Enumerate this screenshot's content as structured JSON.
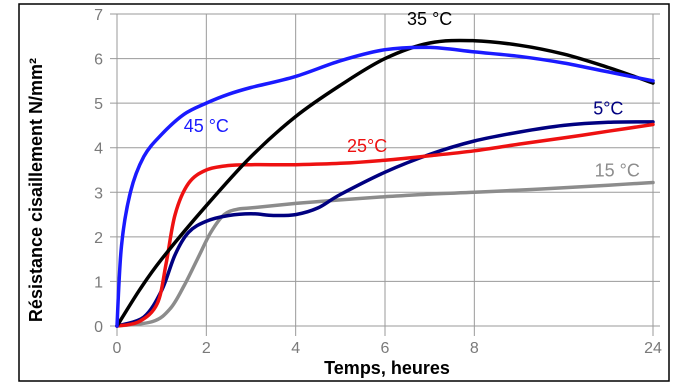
{
  "chart_data": {
    "type": "line",
    "xlabel": "Temps, heures",
    "ylabel": "Résistance cisaillement  N/mm²",
    "x_ticks": [
      "0",
      "2",
      "4",
      "6",
      "8",
      "24"
    ],
    "x_tick_positions": [
      0,
      2,
      4,
      6,
      8,
      12
    ],
    "y_ticks": [
      "0",
      "1",
      "2",
      "3",
      "4",
      "5",
      "6",
      "7"
    ],
    "ylim": [
      0,
      7
    ],
    "grid": true,
    "series": [
      {
        "name": "45 °C",
        "color": "#1a1aff",
        "x": [
          0,
          0.1,
          0.3,
          0.6,
          1.0,
          1.5,
          2.0,
          2.5,
          3.0,
          4.0,
          5.0,
          6.0,
          7.0,
          8.0,
          9.0,
          10.0,
          11.0,
          12.0
        ],
        "y": [
          0,
          1.8,
          3.0,
          3.8,
          4.3,
          4.75,
          5.0,
          5.2,
          5.35,
          5.6,
          5.95,
          6.2,
          6.25,
          6.15,
          6.05,
          5.9,
          5.7,
          5.5
        ]
      },
      {
        "name": "35 °C",
        "color": "#000000",
        "x": [
          0,
          0.5,
          1.0,
          2.0,
          3.0,
          4.0,
          5.0,
          6.0,
          7.0,
          8.0,
          9.0,
          10.0,
          11.0,
          12.0
        ],
        "y": [
          0,
          0.8,
          1.5,
          2.7,
          3.8,
          4.7,
          5.4,
          6.0,
          6.35,
          6.4,
          6.3,
          6.1,
          5.8,
          5.45
        ]
      },
      {
        "name": "25°C",
        "color": "#ee1111",
        "x": [
          0,
          0.5,
          0.9,
          1.1,
          1.3,
          1.6,
          2.0,
          2.5,
          3.0,
          4.0,
          5.0,
          6.0,
          7.0,
          8.0,
          9.0,
          10.0,
          11.0,
          12.0
        ],
        "y": [
          0,
          0.1,
          0.5,
          1.4,
          2.5,
          3.2,
          3.5,
          3.6,
          3.62,
          3.62,
          3.65,
          3.72,
          3.82,
          3.93,
          4.08,
          4.22,
          4.37,
          4.52
        ]
      },
      {
        "name": "5°C",
        "color": "#000080",
        "x": [
          0,
          0.6,
          1.0,
          1.3,
          1.6,
          2.0,
          2.5,
          3.0,
          3.5,
          4.0,
          4.5,
          5.0,
          6.0,
          7.0,
          8.0,
          9.0,
          10.0,
          11.0,
          12.0
        ],
        "y": [
          0,
          0.2,
          0.8,
          1.6,
          2.1,
          2.35,
          2.48,
          2.52,
          2.48,
          2.5,
          2.65,
          2.95,
          3.45,
          3.85,
          4.15,
          4.35,
          4.5,
          4.57,
          4.58
        ]
      },
      {
        "name": "15 °C",
        "color": "#8c8c8c",
        "x": [
          0,
          0.8,
          1.2,
          1.5,
          1.8,
          2.1,
          2.4,
          2.7,
          3.0,
          4.0,
          5.0,
          6.0,
          7.0,
          8.0,
          9.0,
          10.0,
          11.0,
          12.0
        ],
        "y": [
          0,
          0.1,
          0.4,
          0.9,
          1.5,
          2.1,
          2.5,
          2.62,
          2.65,
          2.75,
          2.83,
          2.9,
          2.96,
          3.0,
          3.05,
          3.1,
          3.16,
          3.22
        ]
      }
    ],
    "annotations": [
      {
        "text": "45 °C",
        "x": 2.0,
        "y": 4.35
      },
      {
        "text": "35 °C",
        "x": 7.0,
        "y": 6.75
      },
      {
        "text": "25°C",
        "x": 5.6,
        "y": 3.9
      },
      {
        "text": "5°C",
        "x": 11.0,
        "y": 4.75
      },
      {
        "text": "15 °C",
        "x": 11.2,
        "y": 3.35
      }
    ]
  }
}
